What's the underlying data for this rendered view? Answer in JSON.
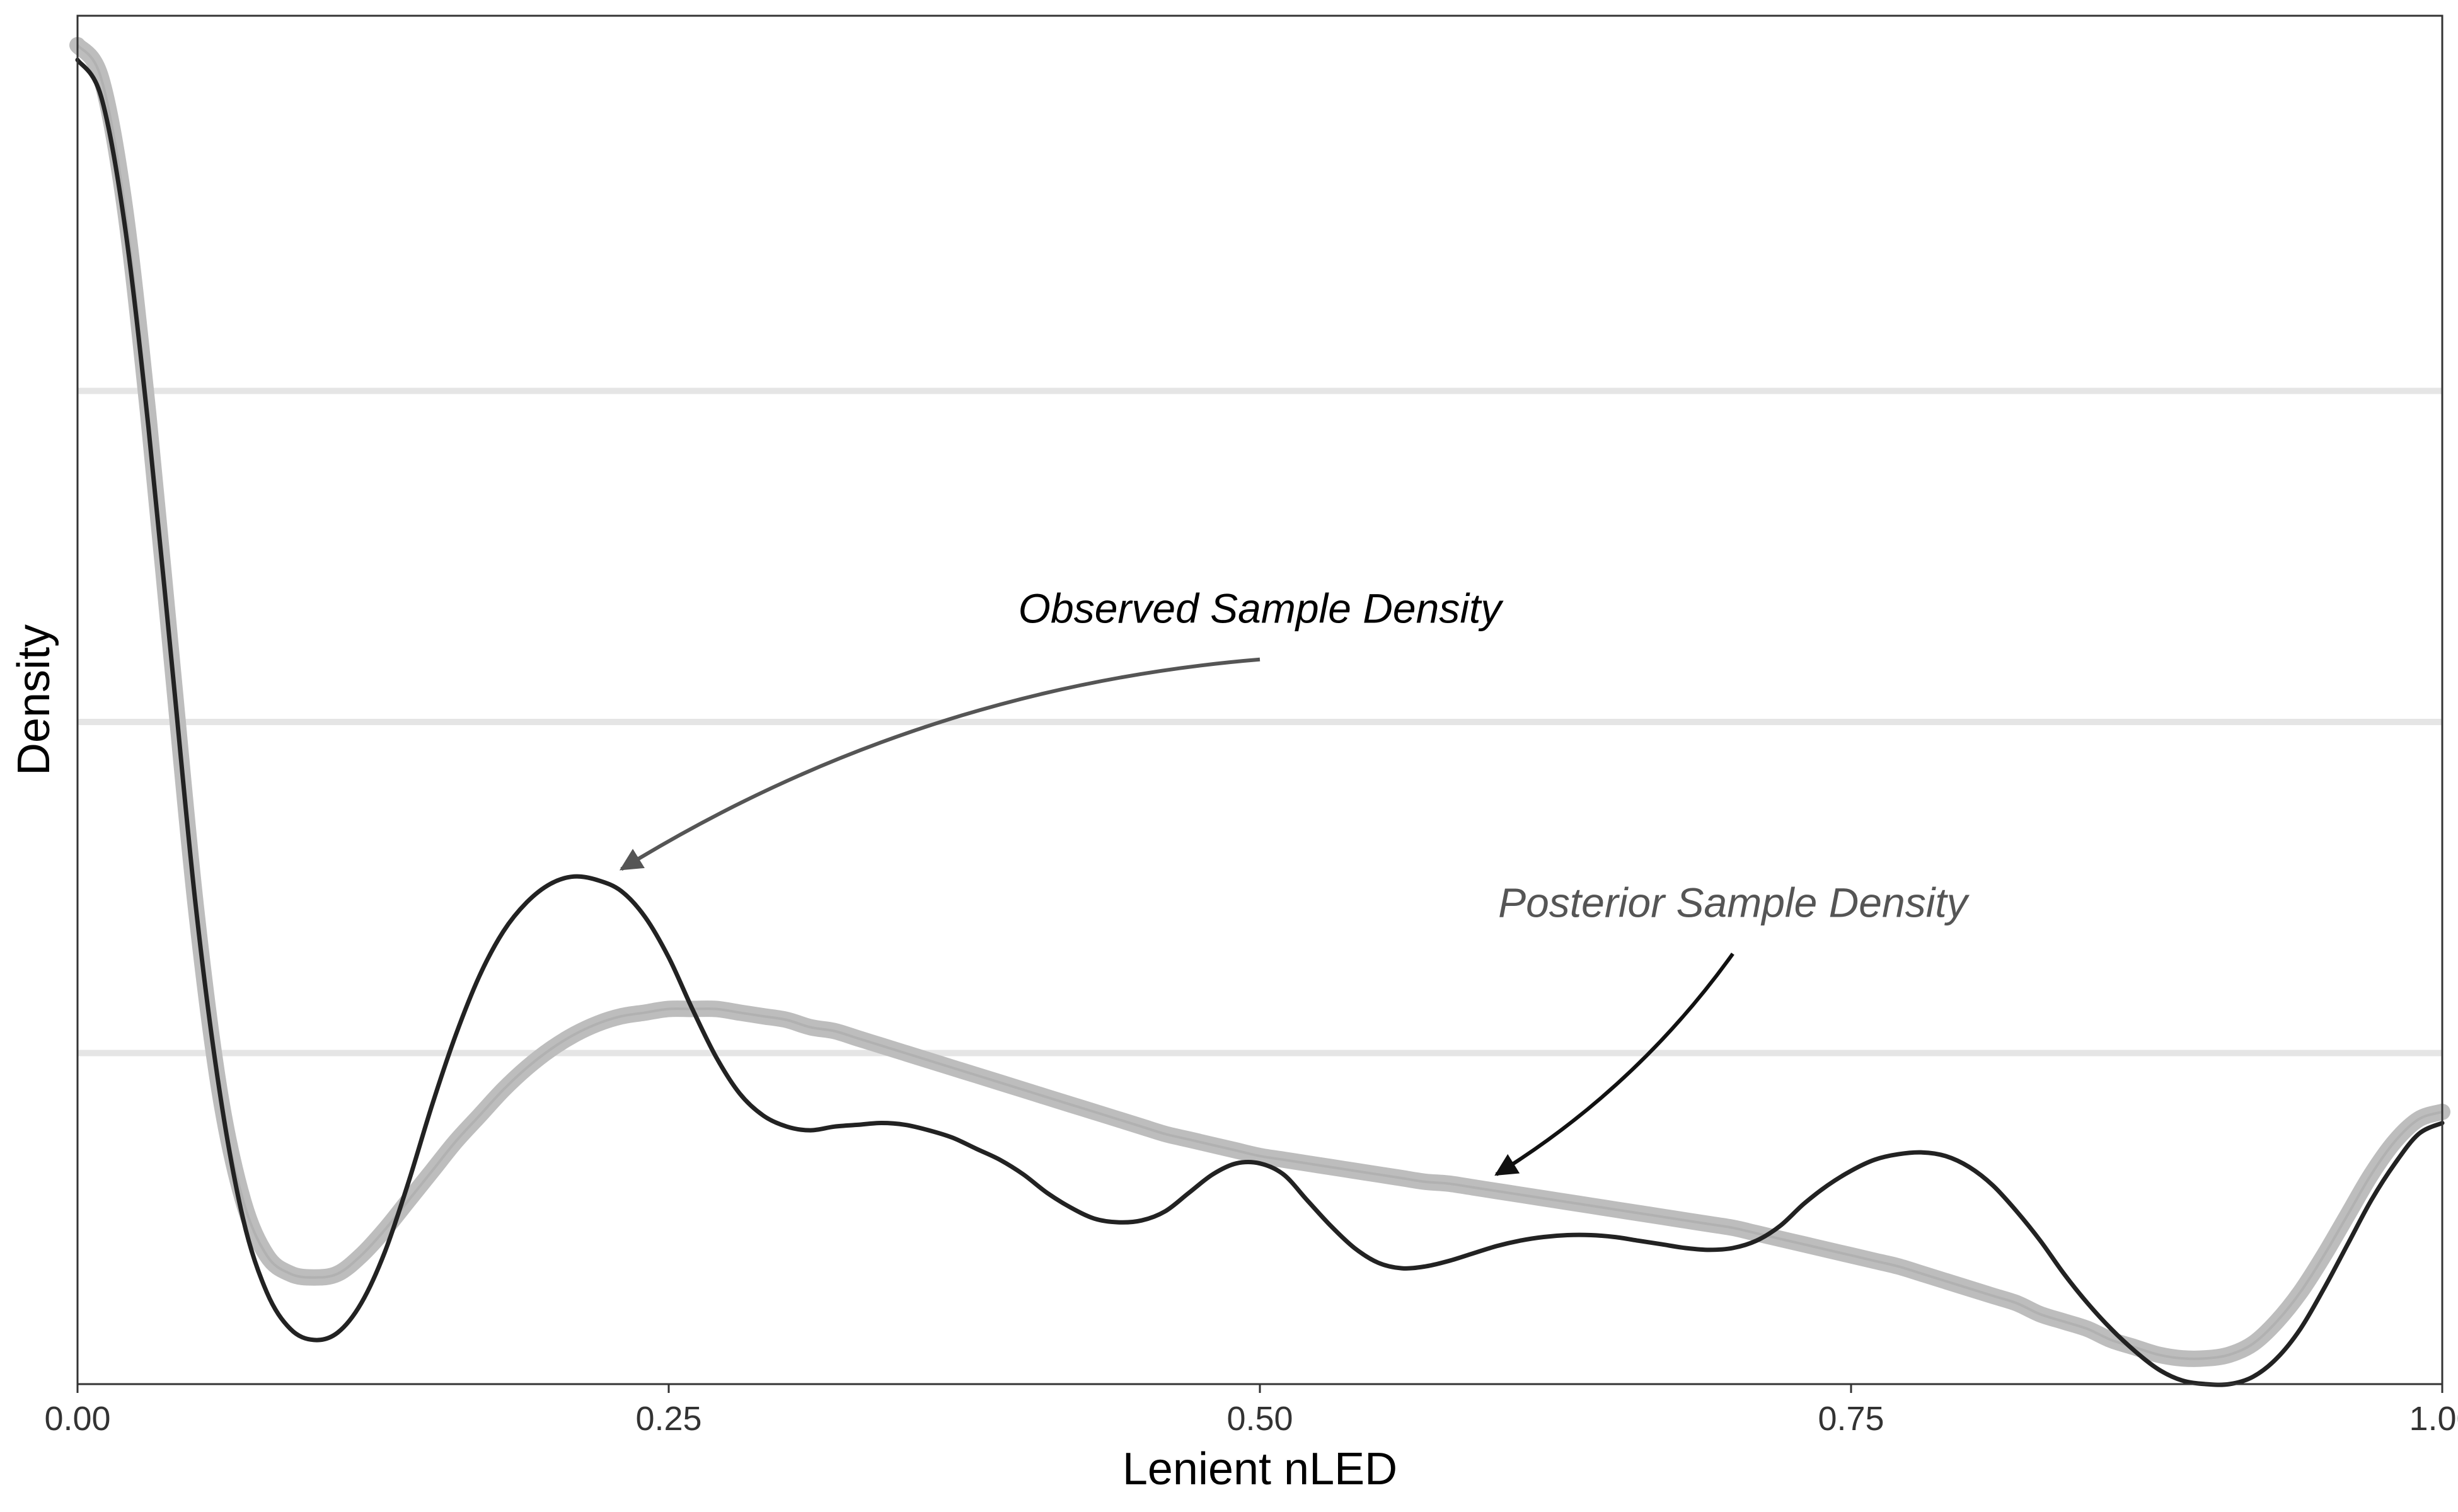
{
  "chart_data": {
    "type": "line",
    "xlabel": "Lenient nLED",
    "ylabel": "Density",
    "xlim": [
      0,
      1
    ],
    "ylim": [
      0,
      3.72
    ],
    "x_ticks": [
      {
        "value": 0,
        "label": "0.00"
      },
      {
        "value": 0.25,
        "label": "0.25"
      },
      {
        "value": 0.5,
        "label": "0.50"
      },
      {
        "value": 0.75,
        "label": "0.75"
      },
      {
        "value": 1,
        "label": "1.00"
      }
    ],
    "y_gridlines": [
      0.9,
      1.8,
      2.7
    ],
    "y_tick_labels_shown": false,
    "grid": "horizontal major only",
    "legend": "none",
    "colors": {
      "observed": "#222222",
      "posterior": "#bdbdbd",
      "gridline": "#e5e5e5",
      "observed_annotation": "#000000",
      "posterior_annotation": "#555555",
      "observed_arrow": "#555555",
      "posterior_arrow": "#111111"
    },
    "series": [
      {
        "name": "Observed Sample Density",
        "role": "observed",
        "points": [
          [
            0,
            3.6
          ],
          [
            0.01,
            3.5
          ],
          [
            0.02,
            3.15
          ],
          [
            0.03,
            2.6
          ],
          [
            0.04,
            1.95
          ],
          [
            0.05,
            1.3
          ],
          [
            0.06,
            0.8
          ],
          [
            0.07,
            0.45
          ],
          [
            0.08,
            0.25
          ],
          [
            0.09,
            0.15
          ],
          [
            0.1,
            0.12
          ],
          [
            0.11,
            0.14
          ],
          [
            0.12,
            0.22
          ],
          [
            0.13,
            0.36
          ],
          [
            0.14,
            0.55
          ],
          [
            0.15,
            0.76
          ],
          [
            0.16,
            0.95
          ],
          [
            0.17,
            1.11
          ],
          [
            0.18,
            1.23
          ],
          [
            0.19,
            1.31
          ],
          [
            0.2,
            1.36
          ],
          [
            0.21,
            1.38
          ],
          [
            0.22,
            1.37
          ],
          [
            0.23,
            1.34
          ],
          [
            0.24,
            1.27
          ],
          [
            0.25,
            1.16
          ],
          [
            0.26,
            1.02
          ],
          [
            0.27,
            0.89
          ],
          [
            0.28,
            0.79
          ],
          [
            0.29,
            0.73
          ],
          [
            0.3,
            0.7
          ],
          [
            0.31,
            0.69
          ],
          [
            0.32,
            0.7
          ],
          [
            0.33,
            0.705
          ],
          [
            0.34,
            0.71
          ],
          [
            0.35,
            0.705
          ],
          [
            0.36,
            0.69
          ],
          [
            0.37,
            0.67
          ],
          [
            0.38,
            0.64
          ],
          [
            0.39,
            0.61
          ],
          [
            0.4,
            0.57
          ],
          [
            0.41,
            0.52
          ],
          [
            0.42,
            0.48
          ],
          [
            0.43,
            0.45
          ],
          [
            0.44,
            0.44
          ],
          [
            0.45,
            0.445
          ],
          [
            0.46,
            0.47
          ],
          [
            0.47,
            0.52
          ],
          [
            0.48,
            0.57
          ],
          [
            0.49,
            0.6
          ],
          [
            0.5,
            0.6
          ],
          [
            0.51,
            0.57
          ],
          [
            0.52,
            0.5
          ],
          [
            0.53,
            0.43
          ],
          [
            0.54,
            0.37
          ],
          [
            0.55,
            0.33
          ],
          [
            0.56,
            0.315
          ],
          [
            0.57,
            0.32
          ],
          [
            0.58,
            0.335
          ],
          [
            0.59,
            0.355
          ],
          [
            0.6,
            0.375
          ],
          [
            0.61,
            0.39
          ],
          [
            0.62,
            0.4
          ],
          [
            0.63,
            0.405
          ],
          [
            0.64,
            0.405
          ],
          [
            0.65,
            0.4
          ],
          [
            0.66,
            0.39
          ],
          [
            0.67,
            0.38
          ],
          [
            0.68,
            0.37
          ],
          [
            0.69,
            0.365
          ],
          [
            0.7,
            0.37
          ],
          [
            0.71,
            0.39
          ],
          [
            0.72,
            0.43
          ],
          [
            0.73,
            0.49
          ],
          [
            0.74,
            0.54
          ],
          [
            0.75,
            0.58
          ],
          [
            0.76,
            0.61
          ],
          [
            0.77,
            0.625
          ],
          [
            0.78,
            0.63
          ],
          [
            0.79,
            0.62
          ],
          [
            0.8,
            0.59
          ],
          [
            0.81,
            0.54
          ],
          [
            0.82,
            0.47
          ],
          [
            0.83,
            0.39
          ],
          [
            0.84,
            0.3
          ],
          [
            0.85,
            0.22
          ],
          [
            0.86,
            0.15
          ],
          [
            0.87,
            0.09
          ],
          [
            0.88,
            0.04
          ],
          [
            0.89,
            0.01
          ],
          [
            0.9,
            0.0
          ],
          [
            0.91,
            0.0
          ],
          [
            0.92,
            0.02
          ],
          [
            0.93,
            0.07
          ],
          [
            0.94,
            0.15
          ],
          [
            0.95,
            0.26
          ],
          [
            0.96,
            0.38
          ],
          [
            0.97,
            0.5
          ],
          [
            0.98,
            0.6
          ],
          [
            0.99,
            0.68
          ],
          [
            1.0,
            0.71
          ]
        ]
      },
      {
        "name": "Posterior Sample Density",
        "role": "posterior",
        "points": [
          [
            0,
            3.64
          ],
          [
            0.01,
            3.55
          ],
          [
            0.02,
            3.2
          ],
          [
            0.03,
            2.63
          ],
          [
            0.04,
            1.96
          ],
          [
            0.05,
            1.3
          ],
          [
            0.06,
            0.8
          ],
          [
            0.07,
            0.5
          ],
          [
            0.08,
            0.35
          ],
          [
            0.09,
            0.3
          ],
          [
            0.1,
            0.29
          ],
          [
            0.11,
            0.3
          ],
          [
            0.12,
            0.35
          ],
          [
            0.13,
            0.42
          ],
          [
            0.14,
            0.5
          ],
          [
            0.15,
            0.58
          ],
          [
            0.16,
            0.66
          ],
          [
            0.17,
            0.73
          ],
          [
            0.18,
            0.8
          ],
          [
            0.19,
            0.86
          ],
          [
            0.2,
            0.91
          ],
          [
            0.21,
            0.95
          ],
          [
            0.22,
            0.98
          ],
          [
            0.23,
            1.0
          ],
          [
            0.24,
            1.01
          ],
          [
            0.25,
            1.02
          ],
          [
            0.26,
            1.02
          ],
          [
            0.27,
            1.02
          ],
          [
            0.28,
            1.01
          ],
          [
            0.29,
            1.0
          ],
          [
            0.3,
            0.99
          ],
          [
            0.31,
            0.97
          ],
          [
            0.32,
            0.96
          ],
          [
            0.33,
            0.94
          ],
          [
            0.34,
            0.92
          ],
          [
            0.35,
            0.9
          ],
          [
            0.36,
            0.88
          ],
          [
            0.37,
            0.86
          ],
          [
            0.38,
            0.84
          ],
          [
            0.39,
            0.82
          ],
          [
            0.4,
            0.8
          ],
          [
            0.41,
            0.78
          ],
          [
            0.42,
            0.76
          ],
          [
            0.43,
            0.74
          ],
          [
            0.44,
            0.72
          ],
          [
            0.45,
            0.7
          ],
          [
            0.46,
            0.68
          ],
          [
            0.47,
            0.665
          ],
          [
            0.48,
            0.65
          ],
          [
            0.49,
            0.635
          ],
          [
            0.5,
            0.62
          ],
          [
            0.51,
            0.61
          ],
          [
            0.52,
            0.6
          ],
          [
            0.53,
            0.59
          ],
          [
            0.54,
            0.58
          ],
          [
            0.55,
            0.57
          ],
          [
            0.56,
            0.56
          ],
          [
            0.57,
            0.55
          ],
          [
            0.58,
            0.545
          ],
          [
            0.59,
            0.535
          ],
          [
            0.6,
            0.525
          ],
          [
            0.61,
            0.515
          ],
          [
            0.62,
            0.505
          ],
          [
            0.63,
            0.495
          ],
          [
            0.64,
            0.485
          ],
          [
            0.65,
            0.475
          ],
          [
            0.66,
            0.465
          ],
          [
            0.67,
            0.455
          ],
          [
            0.68,
            0.445
          ],
          [
            0.69,
            0.435
          ],
          [
            0.7,
            0.425
          ],
          [
            0.71,
            0.41
          ],
          [
            0.72,
            0.395
          ],
          [
            0.73,
            0.38
          ],
          [
            0.74,
            0.365
          ],
          [
            0.75,
            0.35
          ],
          [
            0.76,
            0.335
          ],
          [
            0.77,
            0.32
          ],
          [
            0.78,
            0.3
          ],
          [
            0.79,
            0.28
          ],
          [
            0.8,
            0.26
          ],
          [
            0.81,
            0.24
          ],
          [
            0.82,
            0.22
          ],
          [
            0.83,
            0.19
          ],
          [
            0.84,
            0.17
          ],
          [
            0.85,
            0.15
          ],
          [
            0.86,
            0.12
          ],
          [
            0.87,
            0.1
          ],
          [
            0.88,
            0.08
          ],
          [
            0.89,
            0.07
          ],
          [
            0.9,
            0.07
          ],
          [
            0.91,
            0.08
          ],
          [
            0.92,
            0.11
          ],
          [
            0.93,
            0.17
          ],
          [
            0.94,
            0.25
          ],
          [
            0.95,
            0.35
          ],
          [
            0.96,
            0.46
          ],
          [
            0.97,
            0.57
          ],
          [
            0.98,
            0.66
          ],
          [
            0.99,
            0.72
          ],
          [
            1.0,
            0.74
          ]
        ]
      }
    ],
    "annotations": [
      {
        "text": "Observed Sample Density",
        "text_at": [
          0.5,
          2.07
        ],
        "arrow_from": [
          0.5,
          1.97
        ],
        "arrow_to": [
          0.23,
          1.4
        ]
      },
      {
        "text": "Posterior Sample Density",
        "text_at": [
          0.7,
          1.27
        ],
        "arrow_from": [
          0.7,
          1.17
        ],
        "arrow_to": [
          0.6,
          0.57
        ]
      }
    ]
  }
}
